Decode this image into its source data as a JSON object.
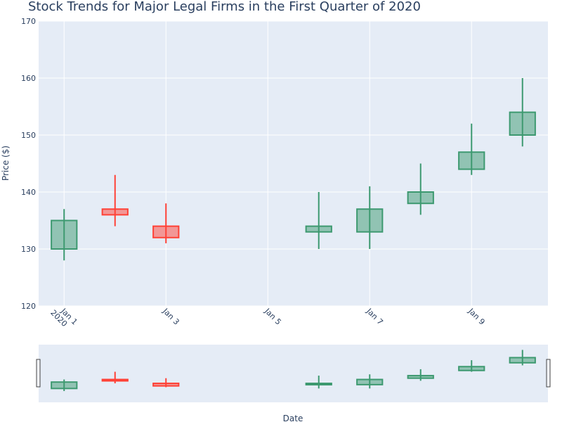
{
  "chart_data": {
    "type": "candlestick",
    "title": "Stock Trends for Major Legal Firms in the First Quarter of 2020",
    "xlabel": "Date",
    "ylabel": "Price ($)",
    "ylim": [
      120,
      170
    ],
    "y_ticks": [
      120,
      130,
      140,
      150,
      160,
      170
    ],
    "x_ticks": [
      {
        "date": "2020-01-01",
        "label": "Jan 1",
        "sublabel": "2020"
      },
      {
        "date": "2020-01-03",
        "label": "Jan 3",
        "sublabel": ""
      },
      {
        "date": "2020-01-05",
        "label": "Jan 5",
        "sublabel": ""
      },
      {
        "date": "2020-01-07",
        "label": "Jan 7",
        "sublabel": ""
      },
      {
        "date": "2020-01-09",
        "label": "Jan 9",
        "sublabel": ""
      }
    ],
    "xlim": [
      "2019-12-31T12:00",
      "2020-01-10T12:00"
    ],
    "grid": true,
    "range_slider": true,
    "colors": {
      "increasing": "#3D9970",
      "decreasing": "#FF4136",
      "plot_bg": "#E5ECF6",
      "grid": "#ffffff"
    },
    "candles": [
      {
        "date": "2020-01-01",
        "open": 130,
        "high": 137,
        "low": 128,
        "close": 135
      },
      {
        "date": "2020-01-02",
        "open": 137,
        "high": 143,
        "low": 134,
        "close": 136
      },
      {
        "date": "2020-01-03",
        "open": 134,
        "high": 138,
        "low": 131,
        "close": 132
      },
      {
        "date": "2020-01-06",
        "open": 133,
        "high": 140,
        "low": 130,
        "close": 134
      },
      {
        "date": "2020-01-07",
        "open": 133,
        "high": 141,
        "low": 130,
        "close": 137
      },
      {
        "date": "2020-01-08",
        "open": 138,
        "high": 145,
        "low": 136,
        "close": 140
      },
      {
        "date": "2020-01-09",
        "open": 144,
        "high": 152,
        "low": 143,
        "close": 147
      },
      {
        "date": "2020-01-10",
        "open": 150,
        "high": 160,
        "low": 148,
        "close": 154
      }
    ]
  }
}
